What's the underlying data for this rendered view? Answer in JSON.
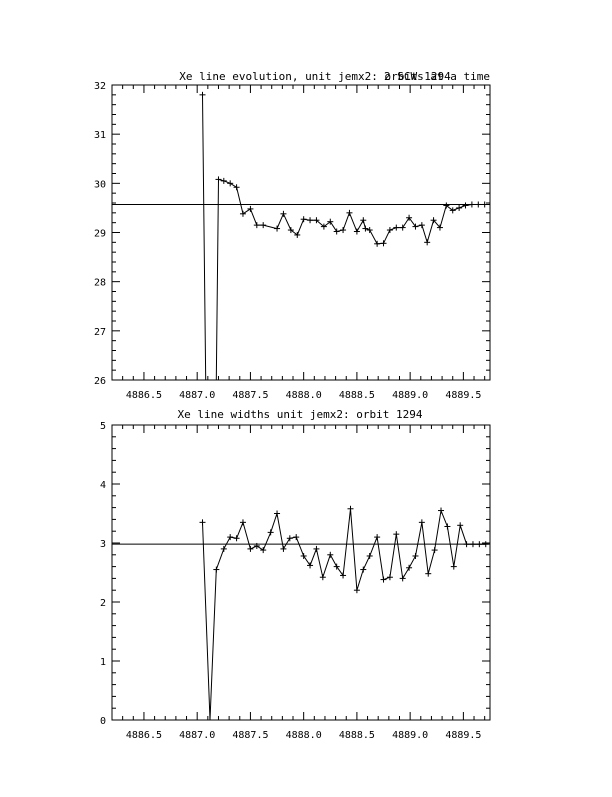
{
  "chart_data": [
    {
      "type": "line",
      "title": "Xe line evolution, unit jemx2: orbit 1294",
      "subtitle": "2 SCWs at a time",
      "xlabel": "",
      "ylabel": "",
      "xlim": [
        4886.2,
        4889.75
      ],
      "ylim": [
        26,
        32
      ],
      "xticks": [
        "4886.5",
        "4887.0",
        "4887.5",
        "4888.0",
        "4888.5",
        "4889.0",
        "4889.5"
      ],
      "yticks": [
        "26",
        "27",
        "28",
        "29",
        "30",
        "31",
        "32"
      ],
      "reference_line": 29.57,
      "series": [
        {
          "x": [
            4887.05,
            4887.08,
            4887.18,
            4887.2,
            4887.25,
            4887.31,
            4887.37,
            4887.43,
            4887.5,
            4887.56,
            4887.62,
            4887.75,
            4887.81,
            4887.88,
            4887.94,
            4888.0,
            4888.06,
            4888.12,
            4888.19,
            4888.25,
            4888.31,
            4888.37,
            4888.43,
            4888.5,
            4888.56,
            4888.58,
            4888.62,
            4888.69,
            4888.75,
            4888.81,
            4888.87,
            4888.93,
            4888.99,
            4889.05,
            4889.11,
            4889.16,
            4889.22,
            4889.28,
            4889.34,
            4889.4,
            4889.46,
            4889.52,
            4889.58,
            4889.64,
            4889.7
          ],
          "y": [
            31.8,
            26.0,
            26.0,
            30.08,
            30.05,
            30.0,
            29.92,
            29.38,
            29.48,
            29.15,
            29.15,
            29.08,
            29.38,
            29.05,
            28.95,
            29.27,
            29.25,
            29.25,
            29.12,
            29.22,
            29.02,
            29.05,
            29.4,
            29.02,
            29.25,
            29.08,
            29.05,
            28.77,
            28.78,
            29.05,
            29.1,
            29.1,
            29.3,
            29.12,
            29.15,
            28.8,
            29.25,
            29.1,
            29.55,
            29.45,
            29.5,
            29.55,
            29.57,
            29.57,
            29.57
          ]
        }
      ],
      "grid": false,
      "legend": "none"
    },
    {
      "type": "line",
      "title": "Xe line widths unit jemx2: orbit 1294",
      "xlabel": "",
      "ylabel": "",
      "xlim": [
        4886.2,
        4889.75
      ],
      "ylim": [
        0,
        5
      ],
      "xticks": [
        "4886.5",
        "4887.0",
        "4887.5",
        "4888.0",
        "4888.5",
        "4889.0",
        "4889.5"
      ],
      "yticks": [
        "0",
        "1",
        "2",
        "3",
        "4",
        "5"
      ],
      "reference_line": 2.98,
      "series": [
        {
          "x": [
            4887.05,
            4887.12,
            4887.18,
            4887.25,
            4887.31,
            4887.37,
            4887.43,
            4887.5,
            4887.56,
            4887.62,
            4887.69,
            4887.75,
            4887.81,
            4887.87,
            4887.93,
            4888.0,
            4888.06,
            4888.12,
            4888.18,
            4888.25,
            4888.31,
            4888.37,
            4888.44,
            4888.5,
            4888.56,
            4888.62,
            4888.69,
            4888.75,
            4888.81,
            4888.87,
            4888.93,
            4888.99,
            4889.05,
            4889.11,
            4889.17,
            4889.23,
            4889.29,
            4889.35,
            4889.41,
            4889.47,
            4889.53,
            4889.59,
            4889.65,
            4889.71
          ],
          "y": [
            3.35,
            0.0,
            2.55,
            2.9,
            3.1,
            3.08,
            3.35,
            2.9,
            2.95,
            2.88,
            3.18,
            3.5,
            2.9,
            3.08,
            3.1,
            2.78,
            2.62,
            2.9,
            2.42,
            2.8,
            2.6,
            2.45,
            3.58,
            2.2,
            2.55,
            2.78,
            3.1,
            2.38,
            2.42,
            3.15,
            2.4,
            2.58,
            2.78,
            3.35,
            2.48,
            2.88,
            3.55,
            3.28,
            2.6,
            3.3,
            2.98,
            2.98,
            2.98,
            2.98
          ]
        }
      ],
      "grid": false,
      "legend": "none"
    }
  ]
}
